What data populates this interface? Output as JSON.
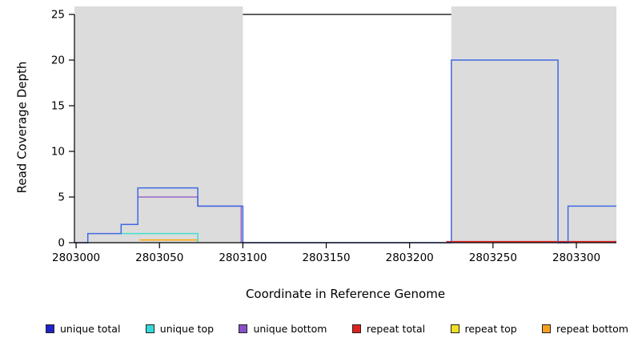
{
  "chart_data": {
    "type": "line",
    "style": "step",
    "title": "",
    "xlabel": "Coordinate in Reference Genome",
    "ylabel": "Read Coverage Depth",
    "xlim": [
      2802999,
      2803324
    ],
    "ylim": [
      0,
      25
    ],
    "x_ticks": [
      2803000,
      2803050,
      2803100,
      2803150,
      2803200,
      2803250,
      2803300
    ],
    "y_ticks": [
      0,
      5,
      10,
      15,
      20,
      25
    ],
    "grid": false,
    "legend_position": "bottom",
    "shade_color": "#DCDCDC",
    "shaded_regions": [
      [
        2802999,
        2803100
      ],
      [
        2803225,
        2803324
      ]
    ],
    "series": [
      {
        "name": "unique total",
        "color": "#4169E1",
        "points": [
          [
            2802999,
            0
          ],
          [
            2803007,
            1
          ],
          [
            2803027,
            2
          ],
          [
            2803037,
            6
          ],
          [
            2803073,
            4
          ],
          [
            2803100,
            0
          ],
          [
            2803225,
            20
          ],
          [
            2803289,
            0
          ],
          [
            2803295,
            4
          ],
          [
            2803324,
            4
          ]
        ]
      },
      {
        "name": "unique top",
        "color": "#40E0D0",
        "points": [
          [
            2803027,
            1
          ],
          [
            2803073,
            0
          ]
        ]
      },
      {
        "name": "unique bottom",
        "color": "#9966CC",
        "points": [
          [
            2803037,
            5
          ],
          [
            2803073,
            4
          ],
          [
            2803099,
            0
          ]
        ]
      },
      {
        "name": "repeat total",
        "color": "#E02020",
        "points": [
          [
            2803222,
            0.12
          ],
          [
            2803324,
            0.12
          ]
        ]
      },
      {
        "name": "repeat top",
        "color": "#F0E020",
        "points": []
      },
      {
        "name": "repeat bottom",
        "color": "#FFA500",
        "points": [
          [
            2803038,
            0.3
          ],
          [
            2803073,
            0
          ]
        ]
      }
    ]
  },
  "legend": {
    "items": [
      {
        "label": "unique total",
        "color": "#2222C8"
      },
      {
        "label": "unique top",
        "color": "#35D8D8"
      },
      {
        "label": "unique bottom",
        "color": "#8A4FC8"
      },
      {
        "label": "repeat total",
        "color": "#E02020"
      },
      {
        "label": "repeat top",
        "color": "#F0E020"
      },
      {
        "label": "repeat bottom",
        "color": "#F5A020"
      }
    ]
  }
}
